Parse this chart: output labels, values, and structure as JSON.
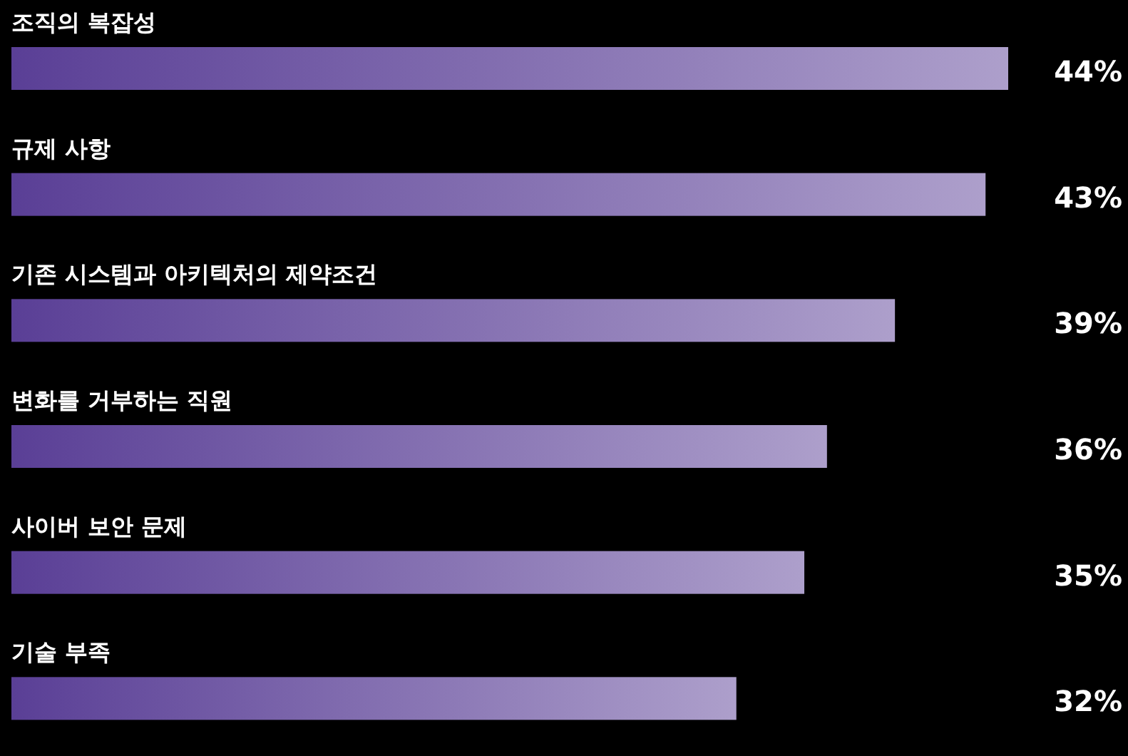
{
  "chart_data": {
    "type": "bar",
    "orientation": "horizontal",
    "categories": [
      "조직의 복잡성",
      "규제 사항",
      "기존 시스템과 아키텍처의 제약조건",
      "변화를 거부하는 직원",
      "사이버 보안 문제",
      "기술 부족"
    ],
    "series": [
      {
        "color": "#5a3f96",
        "values": [
          44,
          43,
          39,
          36,
          35,
          32
        ],
        "value_labels": [
          "44%",
          "43%",
          "39%",
          "36%",
          "35%",
          "32%"
        ]
      }
    ]
  }
}
